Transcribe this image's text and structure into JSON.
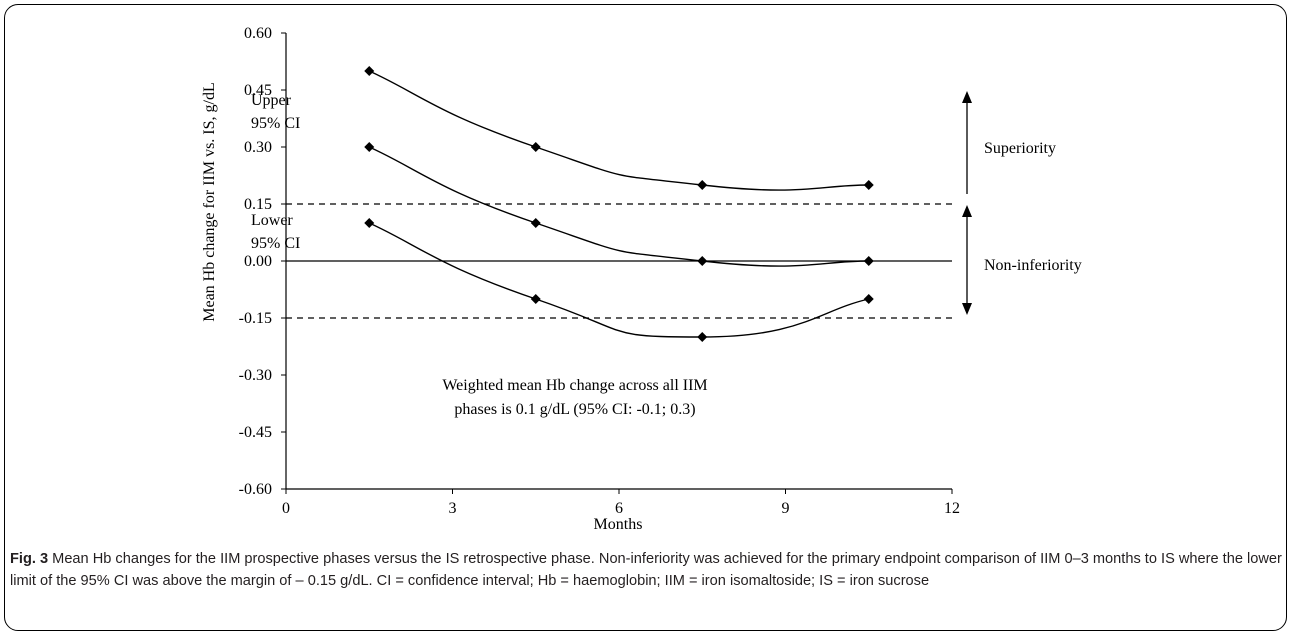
{
  "chart_data": {
    "type": "line",
    "ylabel": "Mean Hb change for IIM vs. IS, g/dL",
    "xlabel": "Months",
    "xlim": [
      0,
      12
    ],
    "ylim": [
      -0.6,
      0.6
    ],
    "x_ticks": [
      "0",
      "3",
      "6",
      "9",
      "12"
    ],
    "y_ticks": [
      "0.60",
      "0.45",
      "0.30",
      "0.15",
      "0.00",
      "-0.15",
      "-0.30",
      "-0.45",
      "-0.60"
    ],
    "series": [
      {
        "name": "Upper 95% CI",
        "x": [
          1.5,
          4.5,
          7.5,
          10.5
        ],
        "y": [
          0.5,
          0.3,
          0.2,
          0.2
        ]
      },
      {
        "name": "",
        "x": [
          1.5,
          4.5,
          7.5,
          10.5
        ],
        "y": [
          0.3,
          0.1,
          0.0,
          0.0
        ]
      },
      {
        "name": "Lower 95% CI",
        "x": [
          1.5,
          4.5,
          7.5,
          10.5
        ],
        "y": [
          0.1,
          -0.1,
          -0.2,
          -0.1
        ]
      }
    ],
    "reference_lines": [
      {
        "y": 0.15,
        "style": "dashed"
      },
      {
        "y": 0.0,
        "style": "solid"
      },
      {
        "y": -0.15,
        "style": "dashed"
      }
    ],
    "labels": {
      "upper_line1": "Upper",
      "upper_line2": "95% CI",
      "lower_line1": "Lower",
      "lower_line2": "95% CI",
      "superiority": "Superiority",
      "non_inferiority": "Non-inferiority",
      "annotation_line1": "Weighted mean Hb change across all IIM",
      "annotation_line2": "phases is 0.1 g/dL (95% CI: -0.1; 0.3)"
    }
  },
  "caption": {
    "label": "Fig. 3",
    "text": " Mean Hb changes for the IIM prospective phases versus the IS retrospective phase. Non-inferiority was achieved for the primary endpoint comparison of IIM 0–3 months to IS where the lower limit of the 95% CI was above the margin of – 0.15 g/dL. CI = confidence interval; Hb = haemoglobin; IIM = iron isomaltoside; IS = iron sucrose"
  }
}
